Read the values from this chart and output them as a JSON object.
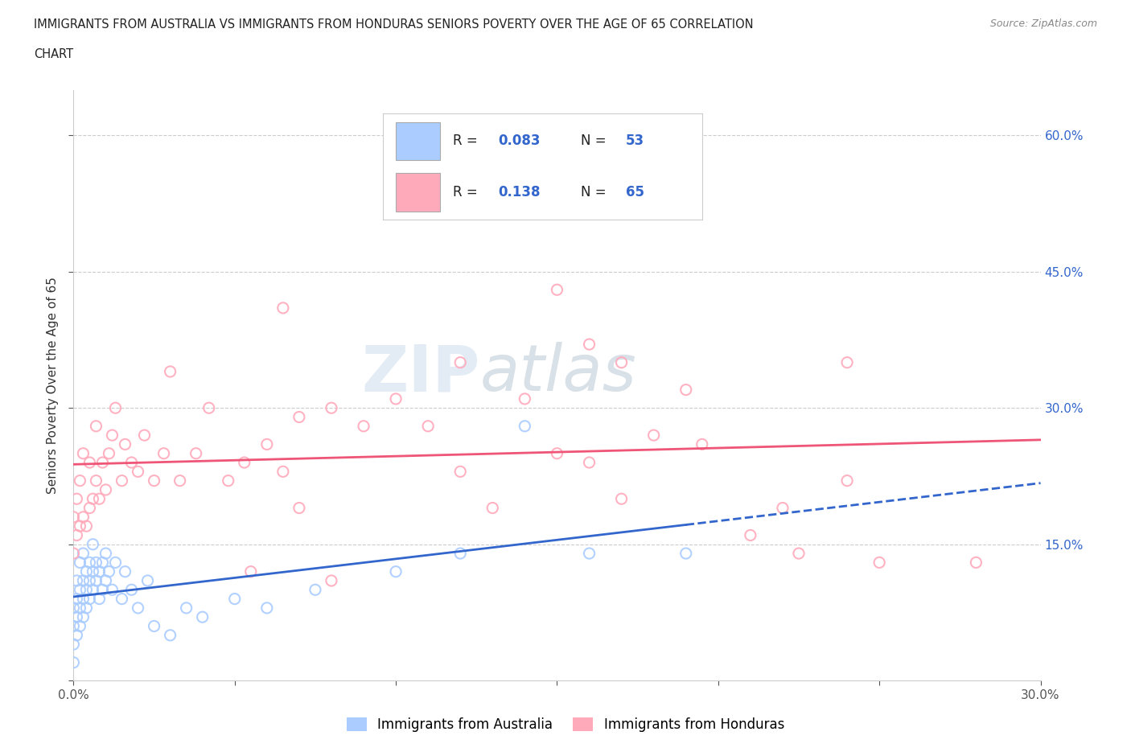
{
  "title_line1": "IMMIGRANTS FROM AUSTRALIA VS IMMIGRANTS FROM HONDURAS SENIORS POVERTY OVER THE AGE OF 65 CORRELATION",
  "title_line2": "CHART",
  "source": "Source: ZipAtlas.com",
  "ylabel": "Seniors Poverty Over the Age of 65",
  "xlim": [
    0.0,
    0.3
  ],
  "ylim": [
    0.0,
    0.65
  ],
  "color_australia": "#aaccff",
  "color_honduras": "#ffaabb",
  "line_color_australia": "#3366cc",
  "line_color_honduras": "#ee5577",
  "watermark_zip": "ZIP",
  "watermark_atlas": "atlas",
  "aus_scatter_x": [
    0.0,
    0.0,
    0.0,
    0.0,
    0.001,
    0.001,
    0.001,
    0.001,
    0.002,
    0.002,
    0.002,
    0.002,
    0.003,
    0.003,
    0.003,
    0.003,
    0.004,
    0.004,
    0.004,
    0.005,
    0.005,
    0.005,
    0.006,
    0.006,
    0.006,
    0.007,
    0.007,
    0.008,
    0.008,
    0.009,
    0.009,
    0.01,
    0.01,
    0.011,
    0.012,
    0.013,
    0.015,
    0.016,
    0.018,
    0.02,
    0.023,
    0.025,
    0.03,
    0.035,
    0.04,
    0.05,
    0.06,
    0.075,
    0.1,
    0.12,
    0.14,
    0.16,
    0.19
  ],
  "aus_scatter_y": [
    0.02,
    0.04,
    0.06,
    0.08,
    0.05,
    0.07,
    0.09,
    0.11,
    0.06,
    0.08,
    0.1,
    0.13,
    0.07,
    0.09,
    0.11,
    0.14,
    0.08,
    0.1,
    0.12,
    0.09,
    0.11,
    0.13,
    0.1,
    0.12,
    0.15,
    0.11,
    0.13,
    0.09,
    0.12,
    0.1,
    0.13,
    0.11,
    0.14,
    0.12,
    0.1,
    0.13,
    0.09,
    0.12,
    0.1,
    0.08,
    0.11,
    0.06,
    0.05,
    0.08,
    0.07,
    0.09,
    0.08,
    0.1,
    0.12,
    0.14,
    0.28,
    0.14,
    0.14
  ],
  "hon_scatter_x": [
    0.0,
    0.0,
    0.001,
    0.001,
    0.002,
    0.002,
    0.003,
    0.003,
    0.004,
    0.005,
    0.005,
    0.006,
    0.007,
    0.007,
    0.008,
    0.009,
    0.01,
    0.011,
    0.012,
    0.013,
    0.015,
    0.016,
    0.018,
    0.02,
    0.022,
    0.025,
    0.028,
    0.03,
    0.033,
    0.038,
    0.042,
    0.048,
    0.053,
    0.06,
    0.065,
    0.07,
    0.08,
    0.09,
    0.1,
    0.11,
    0.12,
    0.13,
    0.14,
    0.15,
    0.16,
    0.17,
    0.18,
    0.195,
    0.21,
    0.225,
    0.24,
    0.25,
    0.1,
    0.17,
    0.07,
    0.19,
    0.12,
    0.08,
    0.055,
    0.16,
    0.24,
    0.28,
    0.065,
    0.15,
    0.22
  ],
  "hon_scatter_y": [
    0.14,
    0.18,
    0.16,
    0.2,
    0.17,
    0.22,
    0.18,
    0.25,
    0.17,
    0.19,
    0.24,
    0.2,
    0.22,
    0.28,
    0.2,
    0.24,
    0.21,
    0.25,
    0.27,
    0.3,
    0.22,
    0.26,
    0.24,
    0.23,
    0.27,
    0.22,
    0.25,
    0.34,
    0.22,
    0.25,
    0.3,
    0.22,
    0.24,
    0.26,
    0.23,
    0.29,
    0.3,
    0.28,
    0.31,
    0.28,
    0.23,
    0.19,
    0.31,
    0.25,
    0.24,
    0.2,
    0.27,
    0.26,
    0.16,
    0.14,
    0.22,
    0.13,
    0.53,
    0.35,
    0.19,
    0.32,
    0.35,
    0.11,
    0.12,
    0.37,
    0.35,
    0.13,
    0.41,
    0.43,
    0.19
  ]
}
